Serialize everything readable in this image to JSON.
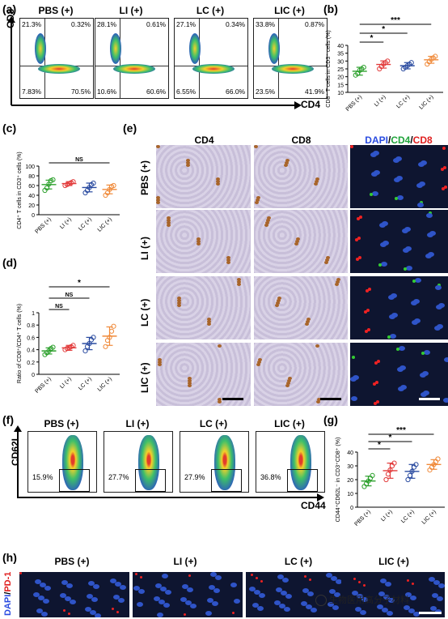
{
  "panels": {
    "a": "(a)",
    "b": "(b)",
    "c": "(c)",
    "d": "(d)",
    "e": "(e)",
    "f": "(f)",
    "g": "(g)",
    "h": "(h)"
  },
  "groups": [
    "PBS (+)",
    "LI (+)",
    "LC (+)",
    "LIC (+)"
  ],
  "panel_a": {
    "x_axis": "CD4",
    "y_axis": "CD8",
    "plots": [
      {
        "title": "PBS (+)",
        "ul": "21.3%",
        "ur": "0.32%",
        "ll": "7.83%",
        "lr": "70.5%"
      },
      {
        "title": "LI (+)",
        "ul": "28.1%",
        "ur": "0.61%",
        "ll": "10.6%",
        "lr": "60.6%"
      },
      {
        "title": "LC (+)",
        "ul": "27.1%",
        "ur": "0.34%",
        "ll": "6.55%",
        "lr": "66.0%"
      },
      {
        "title": "LIC (+)",
        "ul": "33.8%",
        "ur": "0.87%",
        "ll": "23.5%",
        "lr": "41.9%"
      }
    ]
  },
  "panel_e": {
    "columns": [
      "CD4",
      "CD8"
    ],
    "dapi": "DAPI",
    "cd4": "CD4",
    "cd8": "CD8",
    "slash": "/"
  },
  "panel_f": {
    "x_axis": "CD44",
    "y_axis": "CD62L",
    "plots": [
      {
        "title": "PBS (+)",
        "pct": "15.9%"
      },
      {
        "title": "LI (+)",
        "pct": "27.7%"
      },
      {
        "title": "LC (+)",
        "pct": "27.9%"
      },
      {
        "title": "LIC (+)",
        "pct": "36.8%"
      }
    ]
  },
  "panel_h": {
    "titles": [
      "PBS (+)",
      "LI (+)",
      "LC (+)",
      "LIC (+)"
    ],
    "dapi": "DAPI",
    "pd1": "PD-1",
    "slash": "/"
  },
  "watermark": "生物医用高分子材料",
  "colors": {
    "pbs": "#2ca02c",
    "li": "#e23b3b",
    "lc": "#2a4ba0",
    "lic": "#f08a3a"
  },
  "chart_data": [
    {
      "id": "b",
      "type": "scatter",
      "ylabel": "CD8⁺ T cells in CD3⁺ cells (%)",
      "categories": [
        "PBS (+)",
        "LI (+)",
        "LC (+)",
        "LIC (+)"
      ],
      "ylim": [
        10,
        40
      ],
      "yticks": [
        10,
        15,
        20,
        25,
        30,
        35,
        40
      ],
      "means": [
        23.5,
        27.8,
        27.0,
        30.8
      ],
      "sd": [
        2.5,
        2.3,
        2.0,
        2.2
      ],
      "points": [
        [
          21,
          22,
          24,
          25,
          26
        ],
        [
          25,
          26.5,
          28,
          29,
          30
        ],
        [
          25,
          26,
          27,
          28,
          29
        ],
        [
          28,
          29.5,
          31,
          32,
          33
        ]
      ],
      "sig": [
        {
          "from": 0,
          "to": 1,
          "label": "*"
        },
        {
          "from": 0,
          "to": 2,
          "label": "*"
        },
        {
          "from": 0,
          "to": 3,
          "label": "***"
        }
      ]
    },
    {
      "id": "c",
      "type": "scatter",
      "ylabel": "CD4⁺ T cells in CD3⁺ cells (%)",
      "categories": [
        "PBS (+)",
        "LI (+)",
        "LC (+)",
        "LIC (+)"
      ],
      "ylim": [
        0,
        100
      ],
      "yticks": [
        0,
        20,
        40,
        60,
        80,
        100
      ],
      "means": [
        62,
        64,
        56,
        52
      ],
      "sd": [
        9,
        4,
        9,
        9
      ],
      "points": [
        [
          50,
          55,
          63,
          70,
          72
        ],
        [
          60,
          62,
          64,
          66,
          68
        ],
        [
          45,
          50,
          56,
          62,
          65
        ],
        [
          40,
          45,
          52,
          58,
          60
        ]
      ],
      "sig": [
        {
          "from": 0,
          "to": 3,
          "label": "NS"
        }
      ]
    },
    {
      "id": "d",
      "type": "scatter",
      "ylabel": "Ratio of CD8⁺/CD4⁺ T cells (%)",
      "categories": [
        "PBS (+)",
        "LI (+)",
        "LC (+)",
        "LIC (+)"
      ],
      "ylim": [
        0.0,
        1.0
      ],
      "yticks": [
        0.0,
        0.2,
        0.4,
        0.6,
        0.8,
        1.0
      ],
      "means": [
        0.38,
        0.43,
        0.5,
        0.62
      ],
      "sd": [
        0.05,
        0.04,
        0.1,
        0.15
      ],
      "points": [
        [
          0.32,
          0.35,
          0.38,
          0.42,
          0.44
        ],
        [
          0.4,
          0.42,
          0.43,
          0.45,
          0.47
        ],
        [
          0.38,
          0.45,
          0.5,
          0.56,
          0.6
        ],
        [
          0.45,
          0.55,
          0.6,
          0.7,
          0.78
        ]
      ],
      "sig": [
        {
          "from": 0,
          "to": 1,
          "label": "NS"
        },
        {
          "from": 0,
          "to": 2,
          "label": "NS"
        },
        {
          "from": 0,
          "to": 3,
          "label": "*"
        }
      ]
    },
    {
      "id": "g",
      "type": "scatter",
      "ylabel": "CD44⁺CD62L⁻ in CD3⁺CD8⁺ (%)",
      "categories": [
        "PBS (+)",
        "LI (+)",
        "LC (+)",
        "LIC (+)"
      ],
      "ylim": [
        0,
        40
      ],
      "yticks": [
        0,
        10,
        20,
        30,
        40
      ],
      "means": [
        19,
        26.5,
        26,
        31
      ],
      "sd": [
        3.5,
        5.5,
        5,
        3.5
      ],
      "points": [
        [
          15,
          17,
          19,
          21,
          23
        ],
        [
          20,
          24,
          27,
          30,
          32
        ],
        [
          20,
          23,
          26,
          29,
          31
        ],
        [
          27,
          29,
          31,
          33,
          35
        ]
      ],
      "sig": [
        {
          "from": 0,
          "to": 1,
          "label": "*"
        },
        {
          "from": 0,
          "to": 2,
          "label": "*"
        },
        {
          "from": 0,
          "to": 3,
          "label": "***"
        }
      ]
    }
  ]
}
